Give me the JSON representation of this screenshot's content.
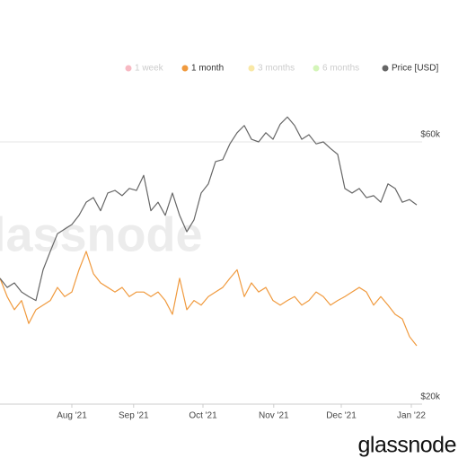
{
  "chart_data": {
    "type": "line",
    "watermark": "glassnode",
    "brand": "glassnode",
    "legend_inactive": [
      {
        "name": "1 week",
        "color": "#f28b9b"
      },
      {
        "name": "3 months",
        "color": "#f5d96b"
      },
      {
        "name": "6 months",
        "color": "#b8ef8a"
      }
    ],
    "xlim": [
      0,
      58
    ],
    "xticks": [
      {
        "value": 10,
        "label": "Aug '21"
      },
      {
        "value": 18.6,
        "label": "Sep '21"
      },
      {
        "value": 28.25,
        "label": "Oct '21"
      },
      {
        "value": 38.1,
        "label": "Nov '21"
      },
      {
        "value": 47.5,
        "label": "Dec '21"
      },
      {
        "value": 57.25,
        "label": "Jan '22"
      }
    ],
    "y2lim": [
      20000,
      70000
    ],
    "y2ticks": [
      {
        "value": 20000,
        "label": "$20k"
      },
      {
        "value": 60000,
        "label": "$60k"
      }
    ],
    "grid": true,
    "series": [
      {
        "name": "1 month",
        "color": "#f09a3e",
        "axis": "y2",
        "values": [
          39200,
          36400,
          34400,
          35800,
          32300,
          34400,
          35100,
          35800,
          37800,
          36400,
          37100,
          40500,
          43300,
          39900,
          38500,
          37800,
          37100,
          37800,
          36400,
          37100,
          37100,
          36400,
          37100,
          35800,
          33700,
          39200,
          34400,
          35800,
          35100,
          36400,
          37100,
          37800,
          39200,
          40500,
          36400,
          38500,
          37100,
          37800,
          35800,
          35100,
          35800,
          36400,
          35100,
          35800,
          37100,
          36400,
          35100,
          35800,
          36400,
          37100,
          37800,
          37100,
          35100,
          36400,
          35100,
          33700,
          33000,
          30300,
          28900
        ]
      },
      {
        "name": "Price [USD]",
        "color": "#666666",
        "axis": "y2",
        "values": [
          39200,
          37800,
          38500,
          37100,
          36400,
          35800,
          40500,
          43300,
          46000,
          46700,
          47400,
          48800,
          50800,
          51500,
          49500,
          52200,
          52600,
          51800,
          52900,
          52600,
          54900,
          49500,
          50800,
          48800,
          52200,
          48800,
          46300,
          48100,
          52200,
          53600,
          57000,
          57300,
          59700,
          61400,
          62500,
          60400,
          60000,
          61400,
          60400,
          62700,
          63800,
          62500,
          60400,
          61100,
          59700,
          60000,
          59000,
          58100,
          52900,
          52200,
          52900,
          51500,
          51800,
          50800,
          53600,
          52900,
          50800,
          51200,
          50400
        ]
      }
    ]
  }
}
